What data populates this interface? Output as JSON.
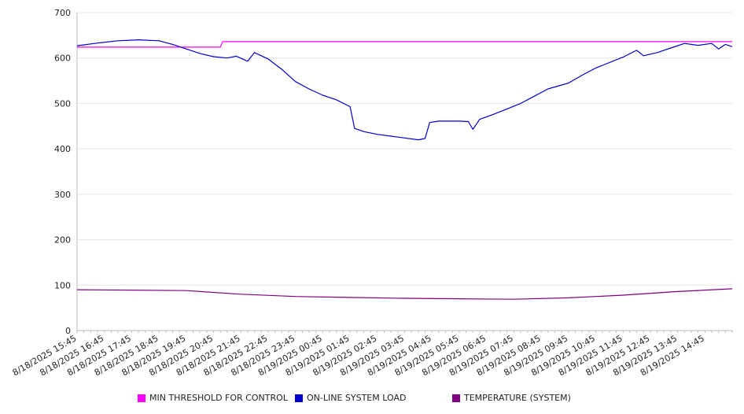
{
  "chart_data": {
    "type": "line",
    "title": "",
    "xlabel": "",
    "ylabel": "",
    "ylim": [
      0,
      700
    ],
    "yticks": [
      0,
      100,
      200,
      300,
      400,
      500,
      600,
      700
    ],
    "grid": true,
    "legend_position": "bottom",
    "x_tick_labels": [
      "8/18/2025 15:45",
      "8/18/2025 16:45",
      "8/18/2025 17:45",
      "8/18/2025 18:45",
      "8/18/2025 19:45",
      "8/18/2025 20:45",
      "8/18/2025 21:45",
      "8/18/2025 22:45",
      "8/18/2025 23:45",
      "8/19/2025 00:45",
      "8/19/2025 01:45",
      "8/19/2025 02:45",
      "8/19/2025 03:45",
      "8/19/2025 04:45",
      "8/19/2025 05:45",
      "8/19/2025 06:45",
      "8/19/2025 07:45",
      "8/19/2025 08:45",
      "8/19/2025 09:45",
      "8/19/2025 10:45",
      "8/19/2025 11:45",
      "8/19/2025 12:45",
      "8/19/2025 13:45",
      "8/19/2025 14:45"
    ],
    "x_start": "8/18/2025 15:45",
    "x_end": "8/19/2025 15:45",
    "series": [
      {
        "name": "MIN THRESHOLD FOR CONTROL",
        "color": "#ff00ff",
        "points": [
          [
            "8/18/2025 15:45",
            624
          ],
          [
            "8/18/2025 21:00",
            624
          ],
          [
            "8/18/2025 21:05",
            636
          ],
          [
            "8/19/2025 15:45",
            636
          ]
        ]
      },
      {
        "name": "ON-LINE SYSTEM LOAD",
        "color": "#0000cc",
        "points": [
          [
            "8/18/2025 15:45",
            627
          ],
          [
            "8/18/2025 16:30",
            633
          ],
          [
            "8/18/2025 17:15",
            638
          ],
          [
            "8/18/2025 18:00",
            640
          ],
          [
            "8/18/2025 18:45",
            638
          ],
          [
            "8/18/2025 19:15",
            630
          ],
          [
            "8/18/2025 19:45",
            620
          ],
          [
            "8/18/2025 20:15",
            610
          ],
          [
            "8/18/2025 20:45",
            603
          ],
          [
            "8/18/2025 21:15",
            600
          ],
          [
            "8/18/2025 21:35",
            604
          ],
          [
            "8/18/2025 22:00",
            593
          ],
          [
            "8/18/2025 22:15",
            612
          ],
          [
            "8/18/2025 22:45",
            598
          ],
          [
            "8/18/2025 23:15",
            575
          ],
          [
            "8/18/2025 23:45",
            548
          ],
          [
            "8/19/2025 00:15",
            532
          ],
          [
            "8/19/2025 00:45",
            518
          ],
          [
            "8/19/2025 01:15",
            508
          ],
          [
            "8/19/2025 01:45",
            493
          ],
          [
            "8/19/2025 01:55",
            445
          ],
          [
            "8/19/2025 02:15",
            438
          ],
          [
            "8/19/2025 02:45",
            432
          ],
          [
            "8/19/2025 03:15",
            428
          ],
          [
            "8/19/2025 03:45",
            424
          ],
          [
            "8/19/2025 04:15",
            420
          ],
          [
            "8/19/2025 04:30",
            423
          ],
          [
            "8/19/2025 04:40",
            458
          ],
          [
            "8/19/2025 05:00",
            461
          ],
          [
            "8/19/2025 05:45",
            461
          ],
          [
            "8/19/2025 06:05",
            460
          ],
          [
            "8/19/2025 06:15",
            443
          ],
          [
            "8/19/2025 06:30",
            465
          ],
          [
            "8/19/2025 07:00",
            476
          ],
          [
            "8/19/2025 07:30",
            488
          ],
          [
            "8/19/2025 08:00",
            500
          ],
          [
            "8/19/2025 08:30",
            516
          ],
          [
            "8/19/2025 09:00",
            532
          ],
          [
            "8/19/2025 09:45",
            545
          ],
          [
            "8/19/2025 10:15",
            562
          ],
          [
            "8/19/2025 10:45",
            578
          ],
          [
            "8/19/2025 11:15",
            590
          ],
          [
            "8/19/2025 11:45",
            602
          ],
          [
            "8/19/2025 12:15",
            617
          ],
          [
            "8/19/2025 12:30",
            605
          ],
          [
            "8/19/2025 13:00",
            612
          ],
          [
            "8/19/2025 13:30",
            622
          ],
          [
            "8/19/2025 14:00",
            632
          ],
          [
            "8/19/2025 14:30",
            628
          ],
          [
            "8/19/2025 15:00",
            632
          ],
          [
            "8/19/2025 15:15",
            620
          ],
          [
            "8/19/2025 15:30",
            630
          ],
          [
            "8/19/2025 15:45",
            625
          ]
        ]
      },
      {
        "name": "TEMPERATURE (SYSTEM)",
        "color": "#800080",
        "points": [
          [
            "8/18/2025 15:45",
            90
          ],
          [
            "8/18/2025 17:45",
            89
          ],
          [
            "8/18/2025 19:45",
            88
          ],
          [
            "8/18/2025 21:45",
            80
          ],
          [
            "8/18/2025 23:45",
            75
          ],
          [
            "8/19/2025 01:45",
            73
          ],
          [
            "8/19/2025 03:45",
            71
          ],
          [
            "8/19/2025 05:45",
            70
          ],
          [
            "8/19/2025 07:45",
            69
          ],
          [
            "8/19/2025 09:45",
            72
          ],
          [
            "8/19/2025 11:45",
            78
          ],
          [
            "8/19/2025 13:45",
            86
          ],
          [
            "8/19/2025 15:45",
            92
          ]
        ]
      }
    ]
  }
}
